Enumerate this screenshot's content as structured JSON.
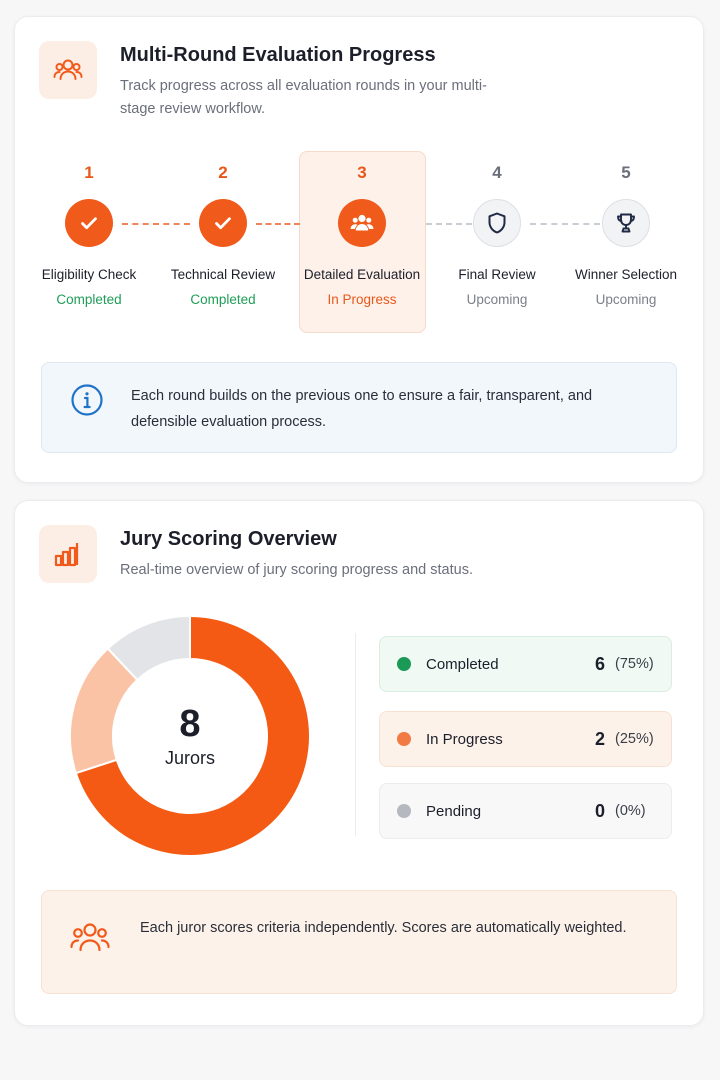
{
  "evaluation": {
    "title": "Multi-Round Evaluation Progress",
    "subtitle": "Track progress across all evaluation rounds in your multi-stage review workflow.",
    "steps": [
      {
        "number": "1",
        "label": "Eligibility Check",
        "status": "Completed",
        "icon": "check-icon"
      },
      {
        "number": "2",
        "label": "Technical Review",
        "status": "Completed",
        "icon": "check-icon"
      },
      {
        "number": "3",
        "label": "Detailed Evaluation",
        "status": "In Progress",
        "icon": "users-icon"
      },
      {
        "number": "4",
        "label": "Final Review",
        "status": "Upcoming",
        "icon": "shield-icon"
      },
      {
        "number": "5",
        "label": "Winner Selection",
        "status": "Upcoming",
        "icon": "trophy-icon"
      }
    ],
    "info": "Each round builds on the previous one to ensure a fair, transparent, and defensible evaluation process."
  },
  "scoring": {
    "title": "Jury Scoring Overview",
    "subtitle": "Real-time overview of jury scoring progress and status.",
    "total_value": "8",
    "total_label": "Jurors",
    "legend": [
      {
        "label": "Completed",
        "count": "6",
        "percent": "(75%)",
        "color": "#1a9a55"
      },
      {
        "label": "In Progress",
        "count": "2",
        "percent": "(25%)",
        "color": "#f27a45"
      },
      {
        "label": "Pending",
        "count": "0",
        "percent": "(0%)",
        "color": "#b5b8bf"
      }
    ],
    "tip": "Each juror scores criteria independently. Scores are automatically weighted."
  },
  "colors": {
    "accent": "#f05a1a",
    "completed": "#1f9d57",
    "info_blue": "#1f73c9"
  },
  "chart_data": {
    "type": "pie",
    "categories": [
      "Completed",
      "In Progress",
      "Pending"
    ],
    "values": [
      6,
      2,
      0
    ],
    "slice_colors": [
      "#f55a14",
      "#fbc3a6",
      "#e3e4e7"
    ]
  }
}
